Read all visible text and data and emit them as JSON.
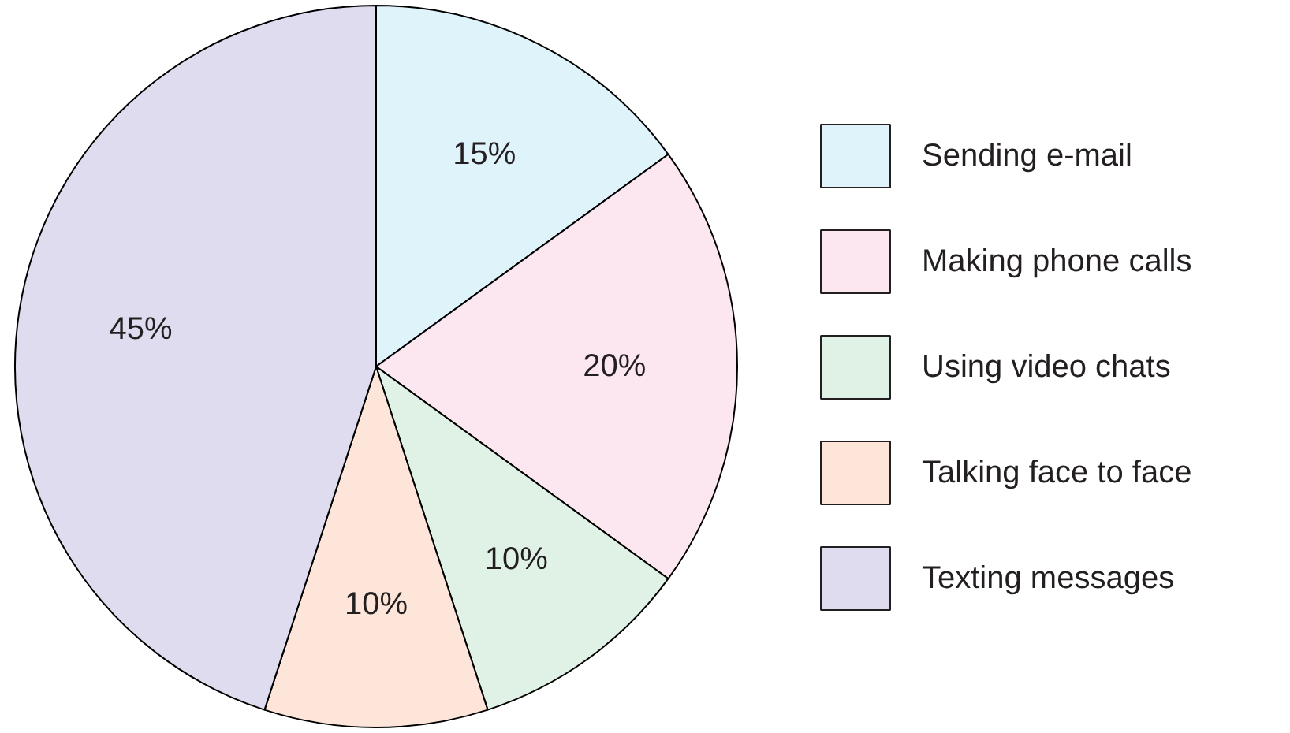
{
  "chart_data": {
    "type": "pie",
    "categories": [
      "Sending e-mail",
      "Making phone calls",
      "Using video chats",
      "Talking face to face",
      "Texting messages"
    ],
    "values": [
      15,
      20,
      10,
      10,
      45
    ],
    "colors": [
      "#dff3fa",
      "#fce6f0",
      "#e0f1e6",
      "#fde5da",
      "#dedcee"
    ],
    "value_labels": [
      "15%",
      "20%",
      "10%",
      "10%",
      "45%"
    ],
    "legend": "right"
  }
}
